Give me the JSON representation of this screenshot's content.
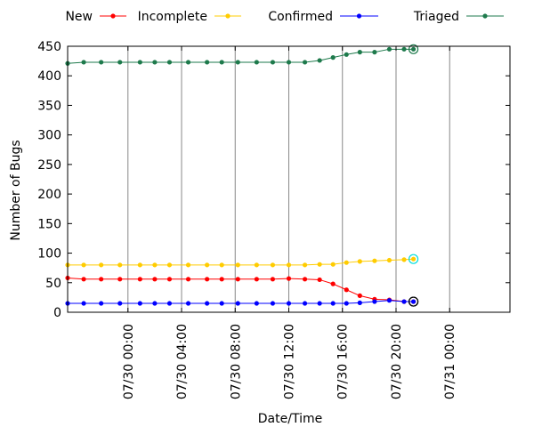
{
  "chart_data": {
    "type": "line",
    "title": "",
    "xlabel": "Date/Time",
    "ylabel": "Number of Bugs",
    "ylim": [
      0,
      450
    ],
    "xlim_hours": [
      -4.5,
      28.5
    ],
    "x_ticks": [
      {
        "hours": 0,
        "label": "07/30 00:00"
      },
      {
        "hours": 4,
        "label": "07/30 04:00"
      },
      {
        "hours": 8,
        "label": "07/30 08:00"
      },
      {
        "hours": 12,
        "label": "07/30 12:00"
      },
      {
        "hours": 16,
        "label": "07/30 16:00"
      },
      {
        "hours": 20,
        "label": "07/30 20:00"
      },
      {
        "hours": 24,
        "label": "07/31 00:00"
      }
    ],
    "y_ticks": [
      0,
      50,
      100,
      150,
      200,
      250,
      300,
      350,
      400,
      450
    ],
    "grid": true,
    "legend_position": "top",
    "x_hours": [
      -4.5,
      -3.3,
      -2.0,
      -0.6,
      0.9,
      2.0,
      3.1,
      4.5,
      5.9,
      7.0,
      8.2,
      9.6,
      10.8,
      12.0,
      13.2,
      14.3,
      15.3,
      16.3,
      17.3,
      18.4,
      19.5,
      20.6,
      21.3
    ],
    "series": [
      {
        "name": "New",
        "color": "#ff0000",
        "values": [
          58,
          56,
          56,
          56,
          56,
          56,
          56,
          56,
          56,
          56,
          56,
          56,
          56,
          57,
          56,
          55,
          48,
          38,
          28,
          22,
          21,
          18,
          18
        ]
      },
      {
        "name": "Incomplete",
        "color": "#ffcc00",
        "values": [
          80,
          80,
          80,
          80,
          80,
          80,
          80,
          80,
          80,
          80,
          80,
          80,
          80,
          80,
          80,
          81,
          81,
          84,
          86,
          87,
          88,
          89,
          90
        ]
      },
      {
        "name": "Confirmed",
        "color": "#0000ff",
        "values": [
          15,
          15,
          15,
          15,
          15,
          15,
          15,
          15,
          15,
          15,
          15,
          15,
          15,
          15,
          15,
          15,
          15,
          15,
          16,
          18,
          20,
          18,
          18
        ]
      },
      {
        "name": "Triaged",
        "color": "#1e7a4c",
        "values": [
          421,
          423,
          423,
          423,
          423,
          423,
          423,
          423,
          423,
          423,
          423,
          423,
          423,
          423,
          423,
          426,
          431,
          436,
          440,
          440,
          445,
          445,
          445
        ]
      }
    ],
    "end_markers": [
      {
        "series": "New",
        "ring_color": "#000000"
      },
      {
        "series": "Incomplete",
        "ring_color": "#00dddd"
      },
      {
        "series": "Confirmed",
        "ring_color": "#000000"
      },
      {
        "series": "Triaged",
        "ring_color": "#1e7a4c"
      }
    ],
    "grid_color": "#888888"
  }
}
